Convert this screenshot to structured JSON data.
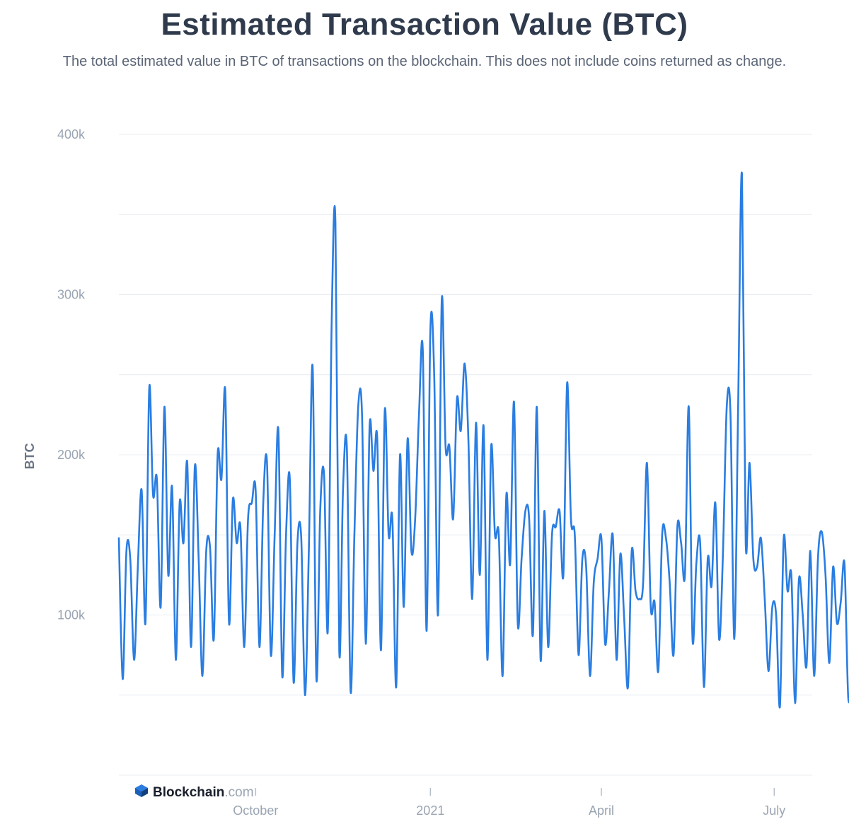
{
  "title": "Estimated Transaction Value (BTC)",
  "subtitle": "The total estimated value in BTC of transactions on the blockchain. This does not include coins returned as change.",
  "brand": {
    "name": "Blockchain",
    "suffix": ".com",
    "logo_icon": "blockchain-cube-icon"
  },
  "colors": {
    "line": "#2a7de1",
    "grid": "#e8ecf1",
    "tick_text": "#9aa4b2"
  },
  "chart_data": {
    "type": "line",
    "ylabel": "BTC",
    "ylim": [
      0,
      400000
    ],
    "y_ticks": [
      {
        "value": 100000,
        "label": "100k"
      },
      {
        "value": 200000,
        "label": "200k"
      },
      {
        "value": 300000,
        "label": "300k"
      },
      {
        "value": 400000,
        "label": "400k"
      }
    ],
    "x_range": [
      "2020-07-21",
      "2021-07-21"
    ],
    "x_ticks": [
      {
        "date": "2020-10-01",
        "label": "October"
      },
      {
        "date": "2021-01-01",
        "label": "2021"
      },
      {
        "date": "2021-04-01",
        "label": "April"
      },
      {
        "date": "2021-07-01",
        "label": "July"
      }
    ],
    "grid": true,
    "legend": "none",
    "series": [
      {
        "x_start": "2020-07-21",
        "x_step_days": 2,
        "values": [
          148000,
          60000,
          140000,
          135000,
          72000,
          130000,
          178000,
          95000,
          242000,
          175000,
          185000,
          105000,
          230000,
          125000,
          180000,
          72000,
          170000,
          145000,
          195000,
          80000,
          193000,
          135000,
          62000,
          140000,
          142000,
          85000,
          200000,
          185000,
          240000,
          95000,
          172000,
          145000,
          155000,
          80000,
          160000,
          170000,
          178000,
          80000,
          170000,
          195000,
          75000,
          150000,
          215000,
          62000,
          150000,
          185000,
          58000,
          145000,
          148000,
          50000,
          140000,
          255000,
          60000,
          165000,
          188000,
          90000,
          280000,
          345000,
          78000,
          178000,
          205000,
          52000,
          150000,
          230000,
          225000,
          82000,
          218000,
          190000,
          210000,
          78000,
          228000,
          150000,
          160000,
          55000,
          200000,
          105000,
          210000,
          140000,
          160000,
          225000,
          265000,
          90000,
          278000,
          250000,
          100000,
          297000,
          205000,
          205000,
          160000,
          235000,
          215000,
          257000,
          210000,
          110000,
          220000,
          125000,
          218000,
          72000,
          205000,
          150000,
          150000,
          62000,
          175000,
          132000,
          233000,
          95000,
          135000,
          165000,
          160000,
          88000,
          230000,
          72000,
          165000,
          80000,
          150000,
          155000,
          165000,
          125000,
          245000,
          160000,
          150000,
          75000,
          135000,
          130000,
          62000,
          120000,
          135000,
          148000,
          82000,
          115000,
          150000,
          72000,
          138000,
          98000,
          55000,
          140000,
          115000,
          110000,
          120000,
          195000,
          105000,
          108000,
          65000,
          150000,
          148000,
          120000,
          75000,
          155000,
          145000,
          125000,
          230000,
          85000,
          132000,
          145000,
          55000,
          135000,
          118000,
          170000,
          85000,
          138000,
          230000,
          225000,
          85000,
          230000,
          375000,
          145000,
          195000,
          135000,
          130000,
          148000,
          110000,
          65000,
          105000,
          100000,
          43000,
          148000,
          115000,
          125000,
          45000,
          122000,
          100000,
          68000,
          140000,
          62000,
          135000,
          152000,
          125000,
          70000,
          130000,
          95000,
          108000,
          132000,
          48000,
          68000,
          75000,
          103000
        ]
      }
    ]
  }
}
